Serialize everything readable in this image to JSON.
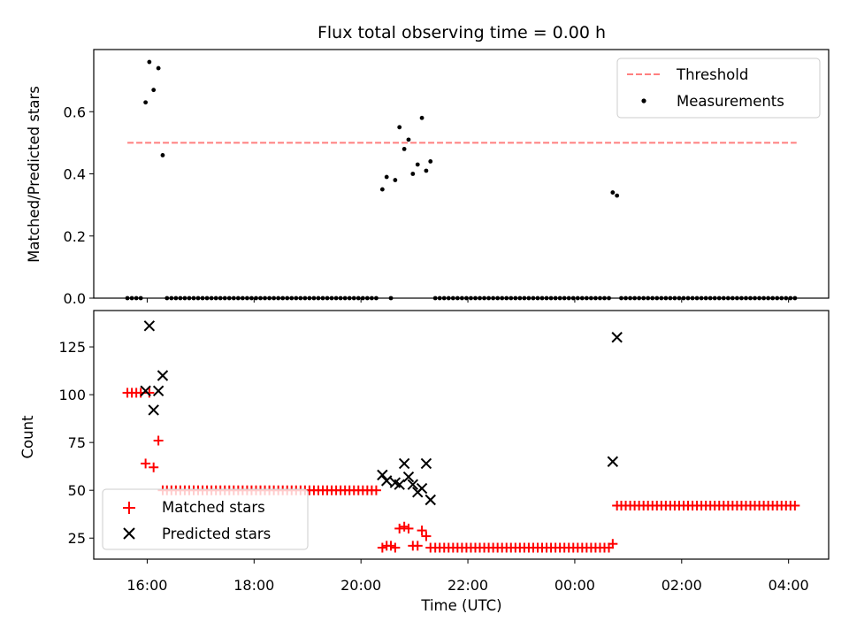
{
  "title": "Flux total observing time = 0.00 h",
  "colors": {
    "threshold": "#ff7f7f",
    "measurement": "#000000",
    "matched": "#ff0000",
    "predicted": "#000000",
    "axes": "#000000",
    "background": "#ffffff"
  },
  "x_axis": {
    "label": "Time (UTC)",
    "tick_labels": [
      "16:00",
      "18:00",
      "20:00",
      "22:00",
      "00:00",
      "02:00",
      "04:00"
    ]
  },
  "chart_data": [
    {
      "type": "scatter",
      "name": "ratio",
      "ylabel": "Matched/Predicted stars",
      "xlim": [
        15.0,
        28.75
      ],
      "ylim": [
        0,
        0.8
      ],
      "yticks": [
        0,
        0.2,
        0.4,
        0.6
      ],
      "ytick_labels": [
        "0.0",
        "0.2",
        "0.4",
        "0.6"
      ],
      "grid": false,
      "legend": {
        "location": "upper right",
        "entries": [
          {
            "label": "Threshold",
            "marker": "dashed-line"
          },
          {
            "label": "Measurements",
            "marker": "dot"
          }
        ]
      },
      "threshold": {
        "y": 0.5,
        "x_from": 15.63,
        "x_to": 28.15
      },
      "measurements": [
        [
          15.97,
          0.63
        ],
        [
          16.04,
          0.76
        ],
        [
          16.12,
          0.67
        ],
        [
          16.21,
          0.74
        ],
        [
          16.29,
          0.46
        ],
        [
          20.4,
          0.35
        ],
        [
          20.48,
          0.39
        ],
        [
          20.64,
          0.38
        ],
        [
          20.72,
          0.55
        ],
        [
          20.81,
          0.48
        ],
        [
          20.89,
          0.51
        ],
        [
          20.97,
          0.4
        ],
        [
          21.06,
          0.43
        ],
        [
          21.14,
          0.58
        ],
        [
          21.22,
          0.41
        ],
        [
          21.3,
          0.44
        ],
        [
          24.71,
          0.34
        ],
        [
          24.79,
          0.33
        ],
        [
          20.56,
          0.0
        ]
      ],
      "zero_segments": [
        [
          15.63,
          15.9
        ],
        [
          16.37,
          20.32
        ],
        [
          21.39,
          24.64
        ],
        [
          24.87,
          28.15
        ]
      ],
      "zero_step_h": 0.0833
    },
    {
      "type": "scatter",
      "name": "counts",
      "ylabel": "Count",
      "xlim": [
        15.0,
        28.75
      ],
      "ylim": [
        14,
        144
      ],
      "yticks": [
        25,
        50,
        75,
        100,
        125
      ],
      "ytick_labels": [
        "25",
        "50",
        "75",
        "100",
        "125"
      ],
      "grid": false,
      "legend": {
        "location": "lower left",
        "entries": [
          {
            "label": "Matched stars",
            "marker": "plus"
          },
          {
            "label": "Predicted stars",
            "marker": "x"
          }
        ]
      },
      "series": [
        {
          "name": "Matched stars",
          "marker": "plus",
          "runs": [
            {
              "x_from": 15.63,
              "x_to": 15.9,
              "y": 101
            },
            {
              "x_from": 16.37,
              "x_to": 20.32,
              "y": 50
            },
            {
              "x_from": 21.39,
              "x_to": 24.64,
              "y": 20
            },
            {
              "x_from": 24.87,
              "x_to": 28.15,
              "y": 42
            }
          ],
          "step_h": 0.0833,
          "points": [
            [
              15.97,
              64
            ],
            [
              16.04,
              101
            ],
            [
              16.12,
              62
            ],
            [
              16.21,
              76
            ],
            [
              16.29,
              50
            ],
            [
              20.4,
              20
            ],
            [
              20.48,
              21
            ],
            [
              20.56,
              21
            ],
            [
              20.64,
              20
            ],
            [
              20.72,
              30
            ],
            [
              20.81,
              31
            ],
            [
              20.89,
              30
            ],
            [
              20.97,
              21
            ],
            [
              21.06,
              21
            ],
            [
              21.14,
              29
            ],
            [
              21.22,
              26
            ],
            [
              21.3,
              20
            ],
            [
              24.71,
              22
            ],
            [
              24.79,
              42
            ]
          ]
        },
        {
          "name": "Predicted stars",
          "marker": "x",
          "points": [
            [
              15.97,
              102
            ],
            [
              16.04,
              136
            ],
            [
              16.12,
              92
            ],
            [
              16.21,
              102
            ],
            [
              16.29,
              110
            ],
            [
              20.4,
              58
            ],
            [
              20.48,
              55
            ],
            [
              20.64,
              54
            ],
            [
              20.72,
              53
            ],
            [
              20.81,
              64
            ],
            [
              20.89,
              57
            ],
            [
              20.97,
              53
            ],
            [
              21.06,
              49
            ],
            [
              21.14,
              51
            ],
            [
              21.22,
              64
            ],
            [
              21.3,
              45
            ],
            [
              24.71,
              65
            ],
            [
              24.79,
              130
            ]
          ]
        }
      ]
    }
  ]
}
